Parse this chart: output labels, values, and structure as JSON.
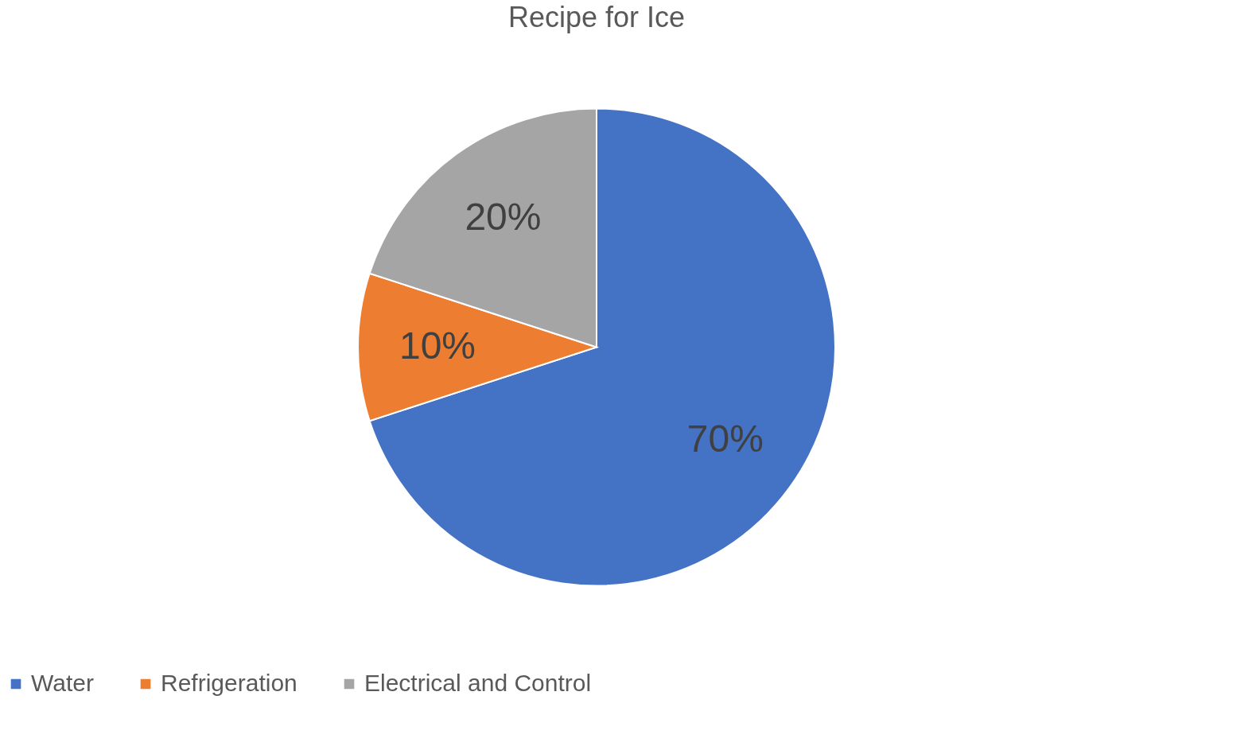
{
  "chart_data": {
    "type": "pie",
    "title": "Recipe for Ice",
    "categories": [
      "Water",
      "Refrigeration",
      "Electrical and Control"
    ],
    "values": [
      70,
      10,
      20
    ],
    "colors": [
      "#4472c4",
      "#ed7d31",
      "#a5a5a5"
    ],
    "value_labels": [
      "70%",
      "10%",
      "20%"
    ],
    "legend": "bottom"
  }
}
